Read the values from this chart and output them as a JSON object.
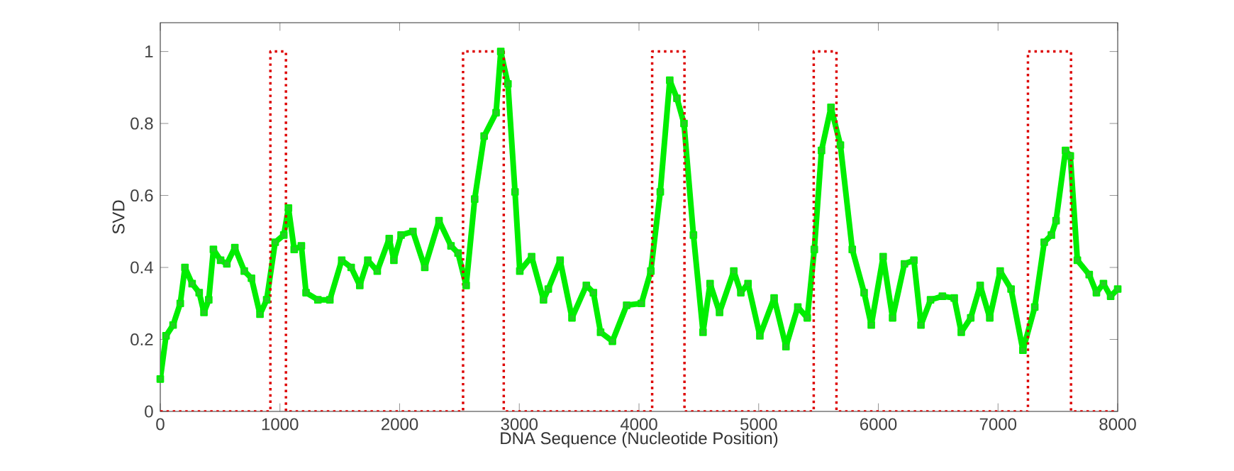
{
  "chart_data": {
    "type": "line",
    "xlabel": "DNA Sequence (Nucleotide Position)",
    "ylabel": "SVD",
    "xlim": [
      0,
      8000
    ],
    "ylim": [
      0,
      1.08
    ],
    "xticks": [
      0,
      1000,
      2000,
      3000,
      4000,
      5000,
      6000,
      7000,
      8000
    ],
    "yticks": [
      0,
      0.2,
      0.4,
      0.6,
      0.8,
      1
    ],
    "grid": false,
    "series": [
      {
        "color": "#00ee00",
        "marker": "square",
        "line_style": "solid",
        "x": [
          0,
          48,
          107,
          167,
          206,
          266,
          325,
          365,
          405,
          444,
          504,
          556,
          623,
          702,
          762,
          833,
          889,
          960,
          1032,
          1071,
          1119,
          1179,
          1218,
          1317,
          1417,
          1516,
          1595,
          1667,
          1734,
          1813,
          1913,
          1952,
          2012,
          2111,
          2210,
          2329,
          2429,
          2488,
          2556,
          2627,
          2706,
          2806,
          2845,
          2905,
          2964,
          3004,
          3103,
          3202,
          3242,
          3341,
          3440,
          3560,
          3619,
          3679,
          3778,
          3897,
          4020,
          4099,
          4178,
          4257,
          4317,
          4376,
          4455,
          4535,
          4594,
          4673,
          4792,
          4851,
          4911,
          5010,
          5129,
          5228,
          5327,
          5406,
          5465,
          5525,
          5604,
          5683,
          5782,
          5881,
          5941,
          6040,
          6119,
          6218,
          6297,
          6356,
          6436,
          6535,
          6634,
          6693,
          6772,
          6851,
          6931,
          7018,
          7109,
          7208,
          7307,
          7386,
          7446,
          7485,
          7564,
          7604,
          7663,
          7762,
          7822,
          7881,
          7941,
          8000
        ],
        "values": [
          0.09,
          0.21,
          0.24,
          0.3,
          0.4,
          0.355,
          0.33,
          0.275,
          0.31,
          0.45,
          0.42,
          0.41,
          0.455,
          0.39,
          0.37,
          0.27,
          0.31,
          0.47,
          0.49,
          0.565,
          0.45,
          0.46,
          0.33,
          0.31,
          0.31,
          0.42,
          0.4,
          0.35,
          0.42,
          0.39,
          0.48,
          0.42,
          0.49,
          0.5,
          0.4,
          0.53,
          0.46,
          0.44,
          0.35,
          0.59,
          0.765,
          0.83,
          1.0,
          0.91,
          0.61,
          0.39,
          0.43,
          0.31,
          0.34,
          0.42,
          0.26,
          0.35,
          0.33,
          0.22,
          0.195,
          0.295,
          0.3,
          0.39,
          0.61,
          0.92,
          0.87,
          0.8,
          0.49,
          0.22,
          0.355,
          0.275,
          0.39,
          0.33,
          0.355,
          0.21,
          0.315,
          0.18,
          0.29,
          0.26,
          0.45,
          0.725,
          0.845,
          0.74,
          0.45,
          0.33,
          0.24,
          0.43,
          0.26,
          0.41,
          0.42,
          0.24,
          0.31,
          0.32,
          0.315,
          0.22,
          0.26,
          0.35,
          0.26,
          0.39,
          0.34,
          0.17,
          0.29,
          0.47,
          0.49,
          0.53,
          0.725,
          0.71,
          0.42,
          0.38,
          0.33,
          0.355,
          0.32,
          0.34
        ]
      },
      {
        "color": "#dd0000",
        "marker": "none",
        "line_style": "dotted",
        "x": [
          0,
          920,
          920,
          1050,
          1050,
          2530,
          2530,
          2870,
          2870,
          4110,
          4110,
          4380,
          4380,
          5460,
          5460,
          5650,
          5650,
          7250,
          7250,
          7610,
          7610,
          8000
        ],
        "values": [
          0,
          0,
          1,
          1,
          0,
          0,
          1,
          1,
          0,
          0,
          1,
          1,
          0,
          0,
          1,
          1,
          0,
          0,
          1,
          1,
          0,
          0
        ]
      }
    ]
  }
}
